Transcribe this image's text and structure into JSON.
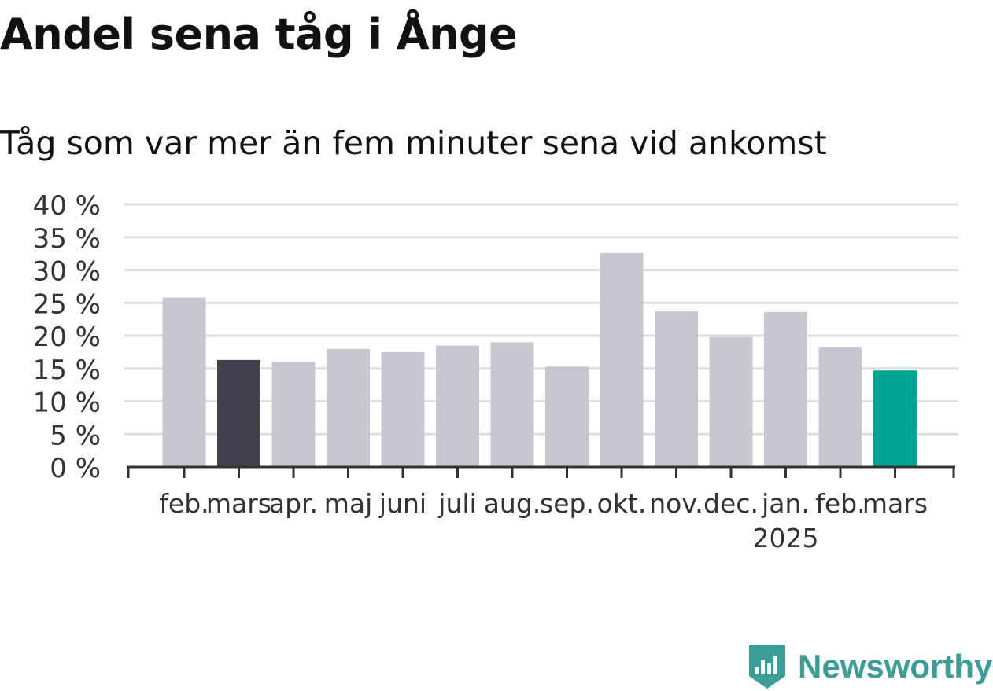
{
  "title": "Andel sena tåg i Ånge",
  "subtitle": "Tåg som var mer än fem minuter sena vid ankomst",
  "colors": {
    "default_bar": "#c8c7d1",
    "highlight_prev": "#43414e",
    "highlight_current": "#00a495",
    "grid": "#dddddd",
    "axis": "#333333",
    "logo": "#3a9e96"
  },
  "logo": {
    "icon": "newsworthy-chart-badge-icon",
    "text": "Newsworthy"
  },
  "chart_data": {
    "type": "bar",
    "categories": [
      "feb.",
      "mars",
      "apr.",
      "maj",
      "juni",
      "juli",
      "aug.",
      "sep.",
      "okt.",
      "nov.",
      "dec.",
      "jan.",
      "feb.",
      "mars"
    ],
    "category_sublabels": [
      "",
      "",
      "",
      "",
      "",
      "",
      "",
      "",
      "",
      "",
      "",
      "2025",
      "",
      ""
    ],
    "values": [
      25.8,
      16.3,
      16.0,
      18.0,
      17.5,
      18.5,
      19.0,
      15.3,
      32.6,
      23.7,
      19.8,
      23.6,
      18.2,
      14.7
    ],
    "highlight": [
      "default",
      "prev",
      "default",
      "default",
      "default",
      "default",
      "default",
      "default",
      "default",
      "default",
      "default",
      "default",
      "default",
      "current"
    ],
    "ylim": [
      0,
      40
    ],
    "yticks": [
      0,
      5,
      10,
      15,
      20,
      25,
      30,
      35,
      40
    ],
    "ytick_labels": [
      "0 %",
      "5 %",
      "10 %",
      "15 %",
      "20 %",
      "25 %",
      "30 %",
      "35 %",
      "40 %"
    ],
    "xlabel": "",
    "ylabel": "",
    "grid": true
  }
}
